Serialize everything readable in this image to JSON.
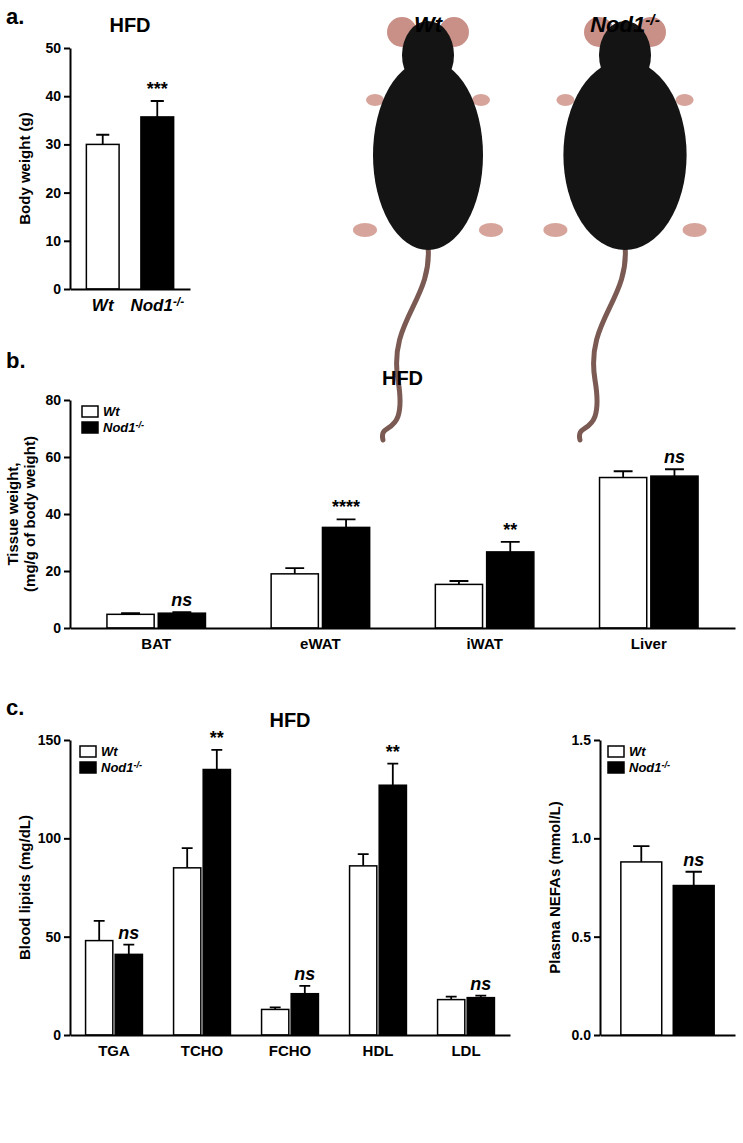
{
  "chart_data": [
    {
      "type": "bar",
      "panel_label": "a.",
      "title": "HFD",
      "categories": [
        "Wt",
        "Nod1-/-"
      ],
      "values": [
        30,
        35.7
      ],
      "errors": [
        2,
        3.3
      ],
      "colors": [
        "#ffffff",
        "#000000"
      ],
      "ylabel": "Body weight (g)",
      "ylim": [
        0,
        50
      ],
      "yticks": [
        0,
        10,
        20,
        30,
        40,
        50
      ],
      "annotations": [
        null,
        "***"
      ],
      "image_labels": [
        "Wt",
        "Nod1-/-"
      ]
    },
    {
      "type": "bar",
      "panel_label": "b.",
      "title": "HFD",
      "ylabel": [
        "Tissue weight,",
        "(mg/g of body weight)"
      ],
      "categories": [
        "BAT",
        "eWAT",
        "iWAT",
        "Liver"
      ],
      "series": [
        {
          "name": "Wt",
          "color": "#ffffff",
          "values": [
            4.8,
            19,
            15.3,
            52.8
          ],
          "errors": [
            0.4,
            2,
            1.2,
            2.2
          ]
        },
        {
          "name": "Nod1-/-",
          "color": "#000000",
          "values": [
            5.2,
            35.3,
            26.7,
            53.3
          ],
          "errors": [
            0.4,
            2.8,
            3.5,
            2.4
          ]
        }
      ],
      "ylim": [
        0,
        80
      ],
      "yticks": [
        0,
        20,
        40,
        60,
        80
      ],
      "legend": "upper left",
      "annotations": [
        "ns",
        "****",
        "**",
        "ns"
      ]
    },
    {
      "type": "bar",
      "panel_label": "c.",
      "title": "HFD",
      "ylabel": "Blood lipids (mg/dL)",
      "categories": [
        "TGA",
        "TCHO",
        "FCHO",
        "HDL",
        "LDL"
      ],
      "series": [
        {
          "name": "Wt",
          "color": "#ffffff",
          "values": [
            48,
            85,
            13,
            86,
            18
          ],
          "errors": [
            10,
            10,
            1,
            6,
            1.5
          ]
        },
        {
          "name": "Nod1-/-",
          "color": "#000000",
          "values": [
            41,
            135,
            21,
            127,
            19
          ],
          "errors": [
            5,
            10,
            4,
            11,
            1
          ]
        }
      ],
      "ylim": [
        0,
        150
      ],
      "yticks": [
        0,
        50,
        100,
        150
      ],
      "legend": "upper left",
      "annotations": [
        "ns",
        "**",
        "ns",
        "**",
        "ns"
      ]
    },
    {
      "type": "bar",
      "ylabel": "Plasma NEFAs (mmol/L)",
      "categories": [
        null
      ],
      "series": [
        {
          "name": "Wt",
          "color": "#ffffff",
          "values": [
            0.88
          ],
          "errors": [
            0.08
          ]
        },
        {
          "name": "Nod1-/-",
          "color": "#000000",
          "values": [
            0.76
          ],
          "errors": [
            0.07
          ]
        }
      ],
      "ylim": [
        0,
        1.5
      ],
      "yticks": [
        {
          "value": 0,
          "label": "0.0"
        },
        {
          "value": 0.5,
          "label": "0.5"
        },
        {
          "value": 1,
          "label": "1.0"
        },
        {
          "value": 1.5,
          "label": "1.5"
        }
      ],
      "legend": "upper left",
      "annotations": [
        "ns"
      ]
    }
  ]
}
